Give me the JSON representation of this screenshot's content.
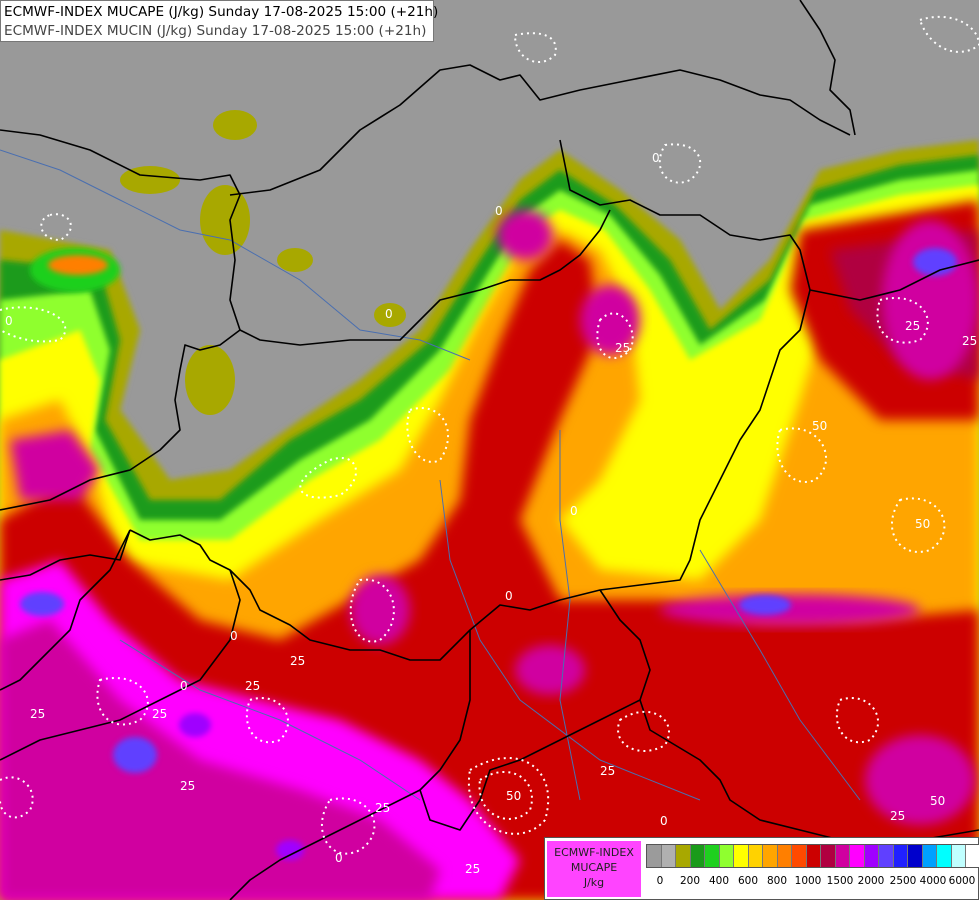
{
  "header": {
    "line1": "ECMWF-INDEX MUCAPE (J/kg) Sunday 17-08-2025 15:00 (+21h)",
    "line2": "ECMWF-INDEX MUCIN (J/kg) Sunday 17-08-2025 15:00 (+21h)"
  },
  "legend": {
    "title_lines": [
      "ECMWF-INDEX",
      "MUCAPE",
      "J/kg"
    ],
    "colors": [
      "#9b9b9b",
      "#b0b0b0",
      "#a8a800",
      "#1a9b1a",
      "#1fd01f",
      "#8fff2f",
      "#ffff00",
      "#ffd200",
      "#ffa500",
      "#ff7f00",
      "#ff4a00",
      "#cc0000",
      "#b00040",
      "#d000a0",
      "#ff00ff",
      "#a000ff",
      "#6040ff",
      "#2020ff",
      "#0000cc",
      "#00a0ff",
      "#00ffff",
      "#c0ffff",
      "#ffffff"
    ],
    "tick_labels": [
      "0",
      "200",
      "400",
      "600",
      "800",
      "1000",
      "1500",
      "2000",
      "2500",
      "4000",
      "6000"
    ]
  },
  "contour_labels": [
    "0",
    "0",
    "0",
    "0",
    "0",
    "0",
    "0",
    "0",
    "0",
    "0",
    "25",
    "25",
    "25",
    "25",
    "25",
    "25",
    "25",
    "25",
    "25",
    "25",
    "25",
    "25",
    "50",
    "50",
    "50",
    "50"
  ]
}
